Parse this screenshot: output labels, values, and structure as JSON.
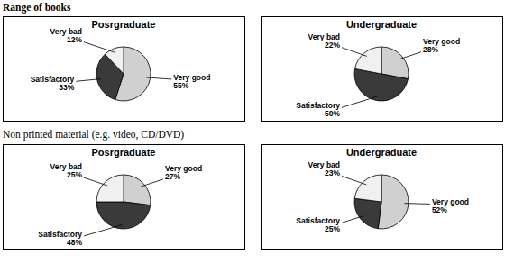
{
  "headings": [
    "Range of books",
    "Non printed material (e.g. video, CD/DVD)"
  ],
  "chart_data": [
    {
      "type": "pie",
      "title": "Posrgraduate",
      "categories": [
        "Very good",
        "Satisfactory",
        "Very bad"
      ],
      "values": [
        55,
        33,
        12
      ],
      "value_labels": [
        "55%",
        "33%",
        "12%"
      ],
      "colors": [
        "#d0d0d0",
        "#3a3a3a",
        "#f0f0f0"
      ],
      "data_labels": true
    },
    {
      "type": "pie",
      "title": "Undergraduate",
      "categories": [
        "Very good",
        "Satisfactory",
        "Very bad"
      ],
      "values": [
        28,
        50,
        22
      ],
      "value_labels": [
        "28%",
        "50%",
        "22%"
      ],
      "colors": [
        "#d0d0d0",
        "#3a3a3a",
        "#f0f0f0"
      ],
      "data_labels": true
    },
    {
      "type": "pie",
      "title": "Posrgraduate",
      "categories": [
        "Very good",
        "Satisfactory",
        "Very bad"
      ],
      "values": [
        27,
        48,
        25
      ],
      "value_labels": [
        "27%",
        "48%",
        "25%"
      ],
      "colors": [
        "#d0d0d0",
        "#3a3a3a",
        "#f0f0f0"
      ],
      "data_labels": true
    },
    {
      "type": "pie",
      "title": "Undergraduate",
      "categories": [
        "Very good",
        "Satisfactory",
        "Very bad"
      ],
      "values": [
        52,
        25,
        23
      ],
      "value_labels": [
        "52%",
        "25%",
        "23%"
      ],
      "colors": [
        "#d0d0d0",
        "#3a3a3a",
        "#f0f0f0"
      ],
      "data_labels": true
    }
  ]
}
